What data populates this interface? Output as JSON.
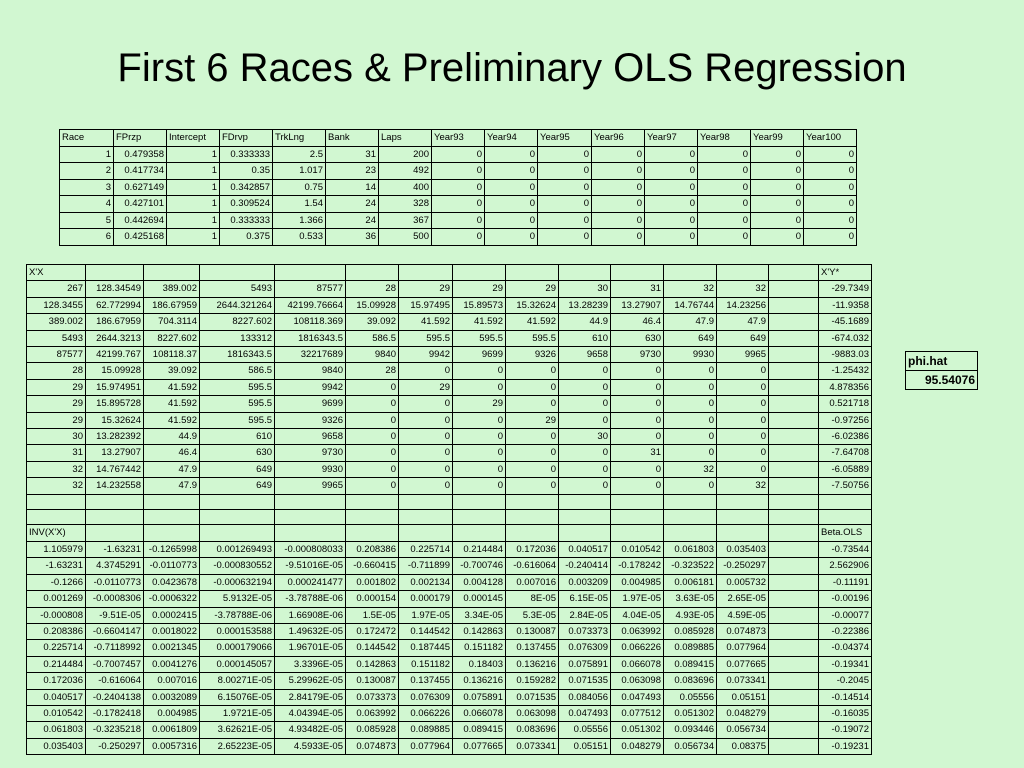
{
  "title": "First 6 Races & Preliminary OLS Regression",
  "race_table": {
    "headers": [
      "Race",
      "FPrzp",
      "Intercept",
      "FDrvp",
      "TrkLng",
      "Bank",
      "Laps",
      "Year93",
      "Year94",
      "Year95",
      "Year96",
      "Year97",
      "Year98",
      "Year99",
      "Year100"
    ],
    "rows": [
      [
        "1",
        "0.479358",
        "1",
        "0.333333",
        "2.5",
        "31",
        "200",
        "0",
        "0",
        "0",
        "0",
        "0",
        "0",
        "0",
        "0"
      ],
      [
        "2",
        "0.417734",
        "1",
        "0.35",
        "1.017",
        "23",
        "492",
        "0",
        "0",
        "0",
        "0",
        "0",
        "0",
        "0",
        "0"
      ],
      [
        "3",
        "0.627149",
        "1",
        "0.342857",
        "0.75",
        "14",
        "400",
        "0",
        "0",
        "0",
        "0",
        "0",
        "0",
        "0",
        "0"
      ],
      [
        "4",
        "0.427101",
        "1",
        "0.309524",
        "1.54",
        "24",
        "328",
        "0",
        "0",
        "0",
        "0",
        "0",
        "0",
        "0",
        "0"
      ],
      [
        "5",
        "0.442694",
        "1",
        "0.333333",
        "1.366",
        "24",
        "367",
        "0",
        "0",
        "0",
        "0",
        "0",
        "0",
        "0",
        "0"
      ],
      [
        "6",
        "0.425168",
        "1",
        "0.375",
        "0.533",
        "36",
        "500",
        "0",
        "0",
        "0",
        "0",
        "0",
        "0",
        "0",
        "0"
      ]
    ]
  },
  "xtx": {
    "label": "X'X",
    "right_label": "X'Y*",
    "rows": [
      [
        "267",
        "128.34549",
        "389.002",
        "5493",
        "87577",
        "28",
        "29",
        "29",
        "29",
        "30",
        "31",
        "32",
        "32",
        "",
        "-29.7349"
      ],
      [
        "128.3455",
        "62.772994",
        "186.67959",
        "2644.321264",
        "42199.76664",
        "15.09928",
        "15.97495",
        "15.89573",
        "15.32624",
        "13.28239",
        "13.27907",
        "14.76744",
        "14.23256",
        "",
        "-11.9358"
      ],
      [
        "389.002",
        "186.67959",
        "704.3114",
        "8227.602",
        "108118.369",
        "39.092",
        "41.592",
        "41.592",
        "41.592",
        "44.9",
        "46.4",
        "47.9",
        "47.9",
        "",
        "-45.1689"
      ],
      [
        "5493",
        "2644.3213",
        "8227.602",
        "133312",
        "1816343.5",
        "586.5",
        "595.5",
        "595.5",
        "595.5",
        "610",
        "630",
        "649",
        "649",
        "",
        "-674.032"
      ],
      [
        "87577",
        "42199.767",
        "108118.37",
        "1816343.5",
        "32217689",
        "9840",
        "9942",
        "9699",
        "9326",
        "9658",
        "9730",
        "9930",
        "9965",
        "",
        "-9883.03"
      ],
      [
        "28",
        "15.09928",
        "39.092",
        "586.5",
        "9840",
        "28",
        "0",
        "0",
        "0",
        "0",
        "0",
        "0",
        "0",
        "",
        "-1.25432"
      ],
      [
        "29",
        "15.974951",
        "41.592",
        "595.5",
        "9942",
        "0",
        "29",
        "0",
        "0",
        "0",
        "0",
        "0",
        "0",
        "",
        "4.878356"
      ],
      [
        "29",
        "15.895728",
        "41.592",
        "595.5",
        "9699",
        "0",
        "0",
        "29",
        "0",
        "0",
        "0",
        "0",
        "0",
        "",
        "0.521718"
      ],
      [
        "29",
        "15.32624",
        "41.592",
        "595.5",
        "9326",
        "0",
        "0",
        "0",
        "29",
        "0",
        "0",
        "0",
        "0",
        "",
        "-0.97256"
      ],
      [
        "30",
        "13.282392",
        "44.9",
        "610",
        "9658",
        "0",
        "0",
        "0",
        "0",
        "30",
        "0",
        "0",
        "0",
        "",
        "-6.02386"
      ],
      [
        "31",
        "13.27907",
        "46.4",
        "630",
        "9730",
        "0",
        "0",
        "0",
        "0",
        "0",
        "31",
        "0",
        "0",
        "",
        "-7.64708"
      ],
      [
        "32",
        "14.767442",
        "47.9",
        "649",
        "9930",
        "0",
        "0",
        "0",
        "0",
        "0",
        "0",
        "32",
        "0",
        "",
        "-6.05889"
      ],
      [
        "32",
        "14.232558",
        "47.9",
        "649",
        "9965",
        "0",
        "0",
        "0",
        "0",
        "0",
        "0",
        "0",
        "32",
        "",
        "-7.50756"
      ]
    ]
  },
  "inv": {
    "label": "INV(X'X)",
    "right_label": "Beta.OLS",
    "rows": [
      [
        "1.105979",
        "-1.63231",
        "-0.1265998",
        "0.001269493",
        "-0.000808033",
        "0.208386",
        "0.225714",
        "0.214484",
        "0.172036",
        "0.040517",
        "0.010542",
        "0.061803",
        "0.035403",
        "",
        "-0.73544"
      ],
      [
        "-1.63231",
        "4.3745291",
        "-0.0110773",
        "-0.000830552",
        "-9.51016E-05",
        "-0.660415",
        "-0.711899",
        "-0.700746",
        "-0.616064",
        "-0.240414",
        "-0.178242",
        "-0.323522",
        "-0.250297",
        "",
        "2.562906"
      ],
      [
        "-0.1266",
        "-0.0110773",
        "0.0423678",
        "-0.000632194",
        "0.000241477",
        "0.001802",
        "0.002134",
        "0.004128",
        "0.007016",
        "0.003209",
        "0.004985",
        "0.006181",
        "0.005732",
        "",
        "-0.11191"
      ],
      [
        "0.001269",
        "-0.0008306",
        "-0.0006322",
        "5.9132E-05",
        "-3.78788E-06",
        "0.000154",
        "0.000179",
        "0.000145",
        "8E-05",
        "6.15E-05",
        "1.97E-05",
        "3.63E-05",
        "2.65E-05",
        "",
        "-0.00196"
      ],
      [
        "-0.000808",
        "-9.51E-05",
        "0.0002415",
        "-3.78788E-06",
        "1.66908E-06",
        "1.5E-05",
        "1.97E-05",
        "3.34E-05",
        "5.3E-05",
        "2.84E-05",
        "4.04E-05",
        "4.93E-05",
        "4.59E-05",
        "",
        "-0.00077"
      ],
      [
        "0.208386",
        "-0.6604147",
        "0.0018022",
        "0.000153588",
        "1.49632E-05",
        "0.172472",
        "0.144542",
        "0.142863",
        "0.130087",
        "0.073373",
        "0.063992",
        "0.085928",
        "0.074873",
        "",
        "-0.22386"
      ],
      [
        "0.225714",
        "-0.7118992",
        "0.0021345",
        "0.000179066",
        "1.96701E-05",
        "0.144542",
        "0.187445",
        "0.151182",
        "0.137455",
        "0.076309",
        "0.066226",
        "0.089885",
        "0.077964",
        "",
        "-0.04374"
      ],
      [
        "0.214484",
        "-0.7007457",
        "0.0041276",
        "0.000145057",
        "3.3396E-05",
        "0.142863",
        "0.151182",
        "0.18403",
        "0.136216",
        "0.075891",
        "0.066078",
        "0.089415",
        "0.077665",
        "",
        "-0.19341"
      ],
      [
        "0.172036",
        "-0.616064",
        "0.007016",
        "8.00271E-05",
        "5.29962E-05",
        "0.130087",
        "0.137455",
        "0.136216",
        "0.159282",
        "0.071535",
        "0.063098",
        "0.083696",
        "0.073341",
        "",
        "-0.2045"
      ],
      [
        "0.040517",
        "-0.2404138",
        "0.0032089",
        "6.15076E-05",
        "2.84179E-05",
        "0.073373",
        "0.076309",
        "0.075891",
        "0.071535",
        "0.084056",
        "0.047493",
        "0.05556",
        "0.05151",
        "",
        "-0.14514"
      ],
      [
        "0.010542",
        "-0.1782418",
        "0.004985",
        "1.9721E-05",
        "4.04394E-05",
        "0.063992",
        "0.066226",
        "0.066078",
        "0.063098",
        "0.047493",
        "0.077512",
        "0.051302",
        "0.048279",
        "",
        "-0.16035"
      ],
      [
        "0.061803",
        "-0.3235218",
        "0.0061809",
        "3.62621E-05",
        "4.93482E-05",
        "0.085928",
        "0.089885",
        "0.089415",
        "0.083696",
        "0.05556",
        "0.051302",
        "0.093446",
        "0.056734",
        "",
        "-0.19072"
      ],
      [
        "0.035403",
        "-0.250297",
        "0.0057316",
        "2.65223E-05",
        "4.5933E-05",
        "0.074873",
        "0.077964",
        "0.077665",
        "0.073341",
        "0.05151",
        "0.048279",
        "0.056734",
        "0.08375",
        "",
        "-0.19231"
      ]
    ]
  },
  "phi": {
    "label": "phi.hat",
    "value": "95.54076"
  }
}
